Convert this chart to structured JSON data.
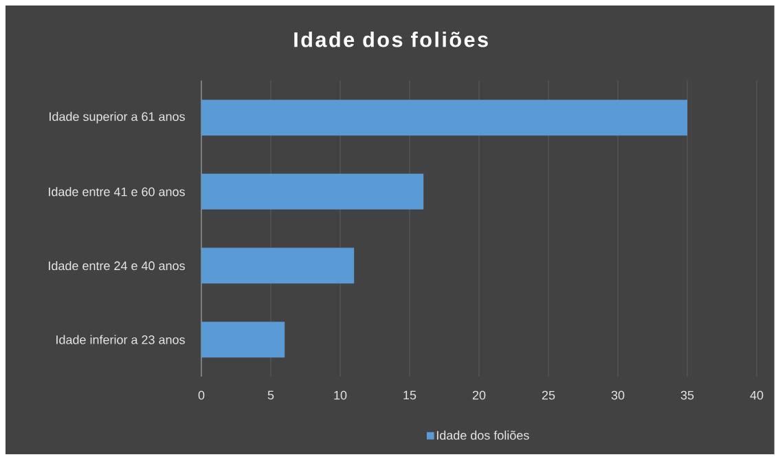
{
  "chart_data": {
    "type": "bar",
    "orientation": "horizontal",
    "title": "Idade dos foliões",
    "categories": [
      "Idade superior a 61 anos",
      "Idade entre 41 e 60 anos",
      "Idade entre 24 e 40 anos",
      "Idade inferior a 23 anos"
    ],
    "series": [
      {
        "name": "Idade dos foliões",
        "color": "#5b9bd5",
        "values": [
          35,
          16,
          11,
          6
        ]
      }
    ],
    "xlim": [
      0,
      40
    ],
    "xticks": [
      0,
      5,
      10,
      15,
      20,
      25,
      30,
      35,
      40
    ],
    "grid": "x",
    "legend": "bottom"
  }
}
